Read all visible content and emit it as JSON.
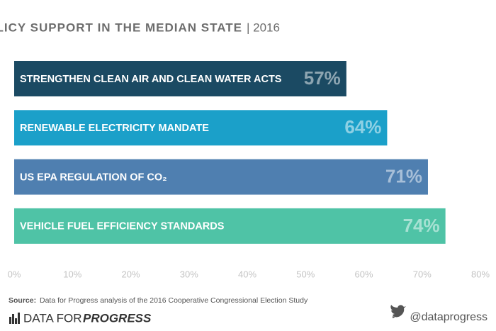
{
  "chart_data": {
    "type": "barh",
    "title": "GREEN POLICY SUPPORT IN THE MEDIAN STATE",
    "subtitle": "| 2016",
    "categories": [
      "STRENGTHEN CLEAN AIR AND CLEAN WATER ACTS",
      "RENEWABLE ELECTRICITY MANDATE",
      "US EPA REGULATION OF CO₂",
      "VEHICLE FUEL EFFICIENCY STANDARDS"
    ],
    "values": [
      57,
      64,
      71,
      74
    ],
    "value_labels": [
      "57%",
      "64%",
      "71%",
      "74%"
    ],
    "colors": [
      "#1b4a63",
      "#1ba0c9",
      "#4f7fb0",
      "#4fc3a6"
    ],
    "xlim": [
      0,
      80
    ],
    "xticks": [
      {
        "value": 0,
        "label": "0%"
      },
      {
        "value": 10,
        "label": "10%"
      },
      {
        "value": 20,
        "label": "20%"
      },
      {
        "value": 30,
        "label": "30%"
      },
      {
        "value": 40,
        "label": "40%"
      },
      {
        "value": 50,
        "label": "50%"
      },
      {
        "value": 60,
        "label": "60%"
      },
      {
        "value": 70,
        "label": "70%"
      },
      {
        "value": 80,
        "label": "80%"
      }
    ],
    "source_label": "Source:",
    "source": "Data for Progress analysis of the 2016 Cooperative Congressional Election Study",
    "brand": "DATA FOR",
    "brand_emphasis": "PROGRESS",
    "handle": "@dataprogress"
  }
}
